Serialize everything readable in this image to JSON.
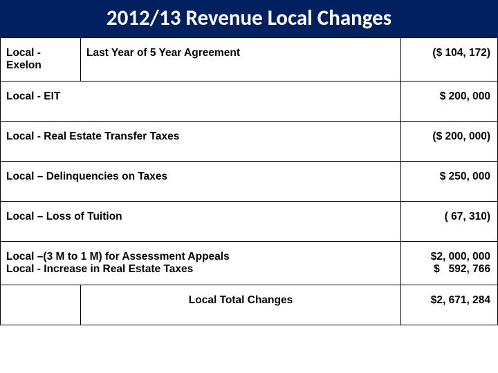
{
  "title": "2012/13 Revenue Local Changes",
  "colors": {
    "title_bg": "#002060",
    "title_text": "#ffffff",
    "cell_border": "#000000",
    "text": "#000000",
    "background": "#ffffff"
  },
  "typography": {
    "title_font": "Calibri",
    "title_size_pt": 24,
    "body_font": "Verdana",
    "body_size_pt": 12,
    "bold": true
  },
  "rows": [
    {
      "cells": [
        {
          "text": "Local - Exelon",
          "colspan": 1
        },
        {
          "text": "Last Year of 5 Year Agreement",
          "colspan": 1
        },
        {
          "text": "($ 104, 172)",
          "colspan": 1,
          "align": "right"
        }
      ]
    },
    {
      "cells": [
        {
          "text": "Local -  EIT",
          "colspan": 2
        },
        {
          "text": "$ 200, 000",
          "colspan": 1,
          "align": "right"
        }
      ]
    },
    {
      "cells": [
        {
          "text": "Local -  Real Estate Transfer Taxes",
          "colspan": 2
        },
        {
          "text": "($ 200, 000)",
          "colspan": 1,
          "align": "right"
        }
      ]
    },
    {
      "cells": [
        {
          "text": "Local – Delinquencies on Taxes",
          "colspan": 2
        },
        {
          "text": "$ 250, 000",
          "colspan": 1,
          "align": "right"
        }
      ]
    },
    {
      "cells": [
        {
          "text": "Local – Loss of Tuition",
          "colspan": 2
        },
        {
          "text": "( 67, 310)",
          "colspan": 1,
          "align": "right"
        }
      ]
    },
    {
      "cells": [
        {
          "text": "Local –(3 M to 1 M) for Assessment Appeals\nLocal - Increase in Real Estate Taxes",
          "colspan": 2
        },
        {
          "text": "$2, 000, 000\n$   592, 766",
          "colspan": 1,
          "align": "right"
        }
      ]
    },
    {
      "cells": [
        {
          "text": "",
          "colspan": 1
        },
        {
          "text": "Local Total Changes",
          "colspan": 1,
          "align": "center"
        },
        {
          "text": "$2, 671, 284",
          "colspan": 1,
          "align": "right"
        }
      ]
    }
  ]
}
